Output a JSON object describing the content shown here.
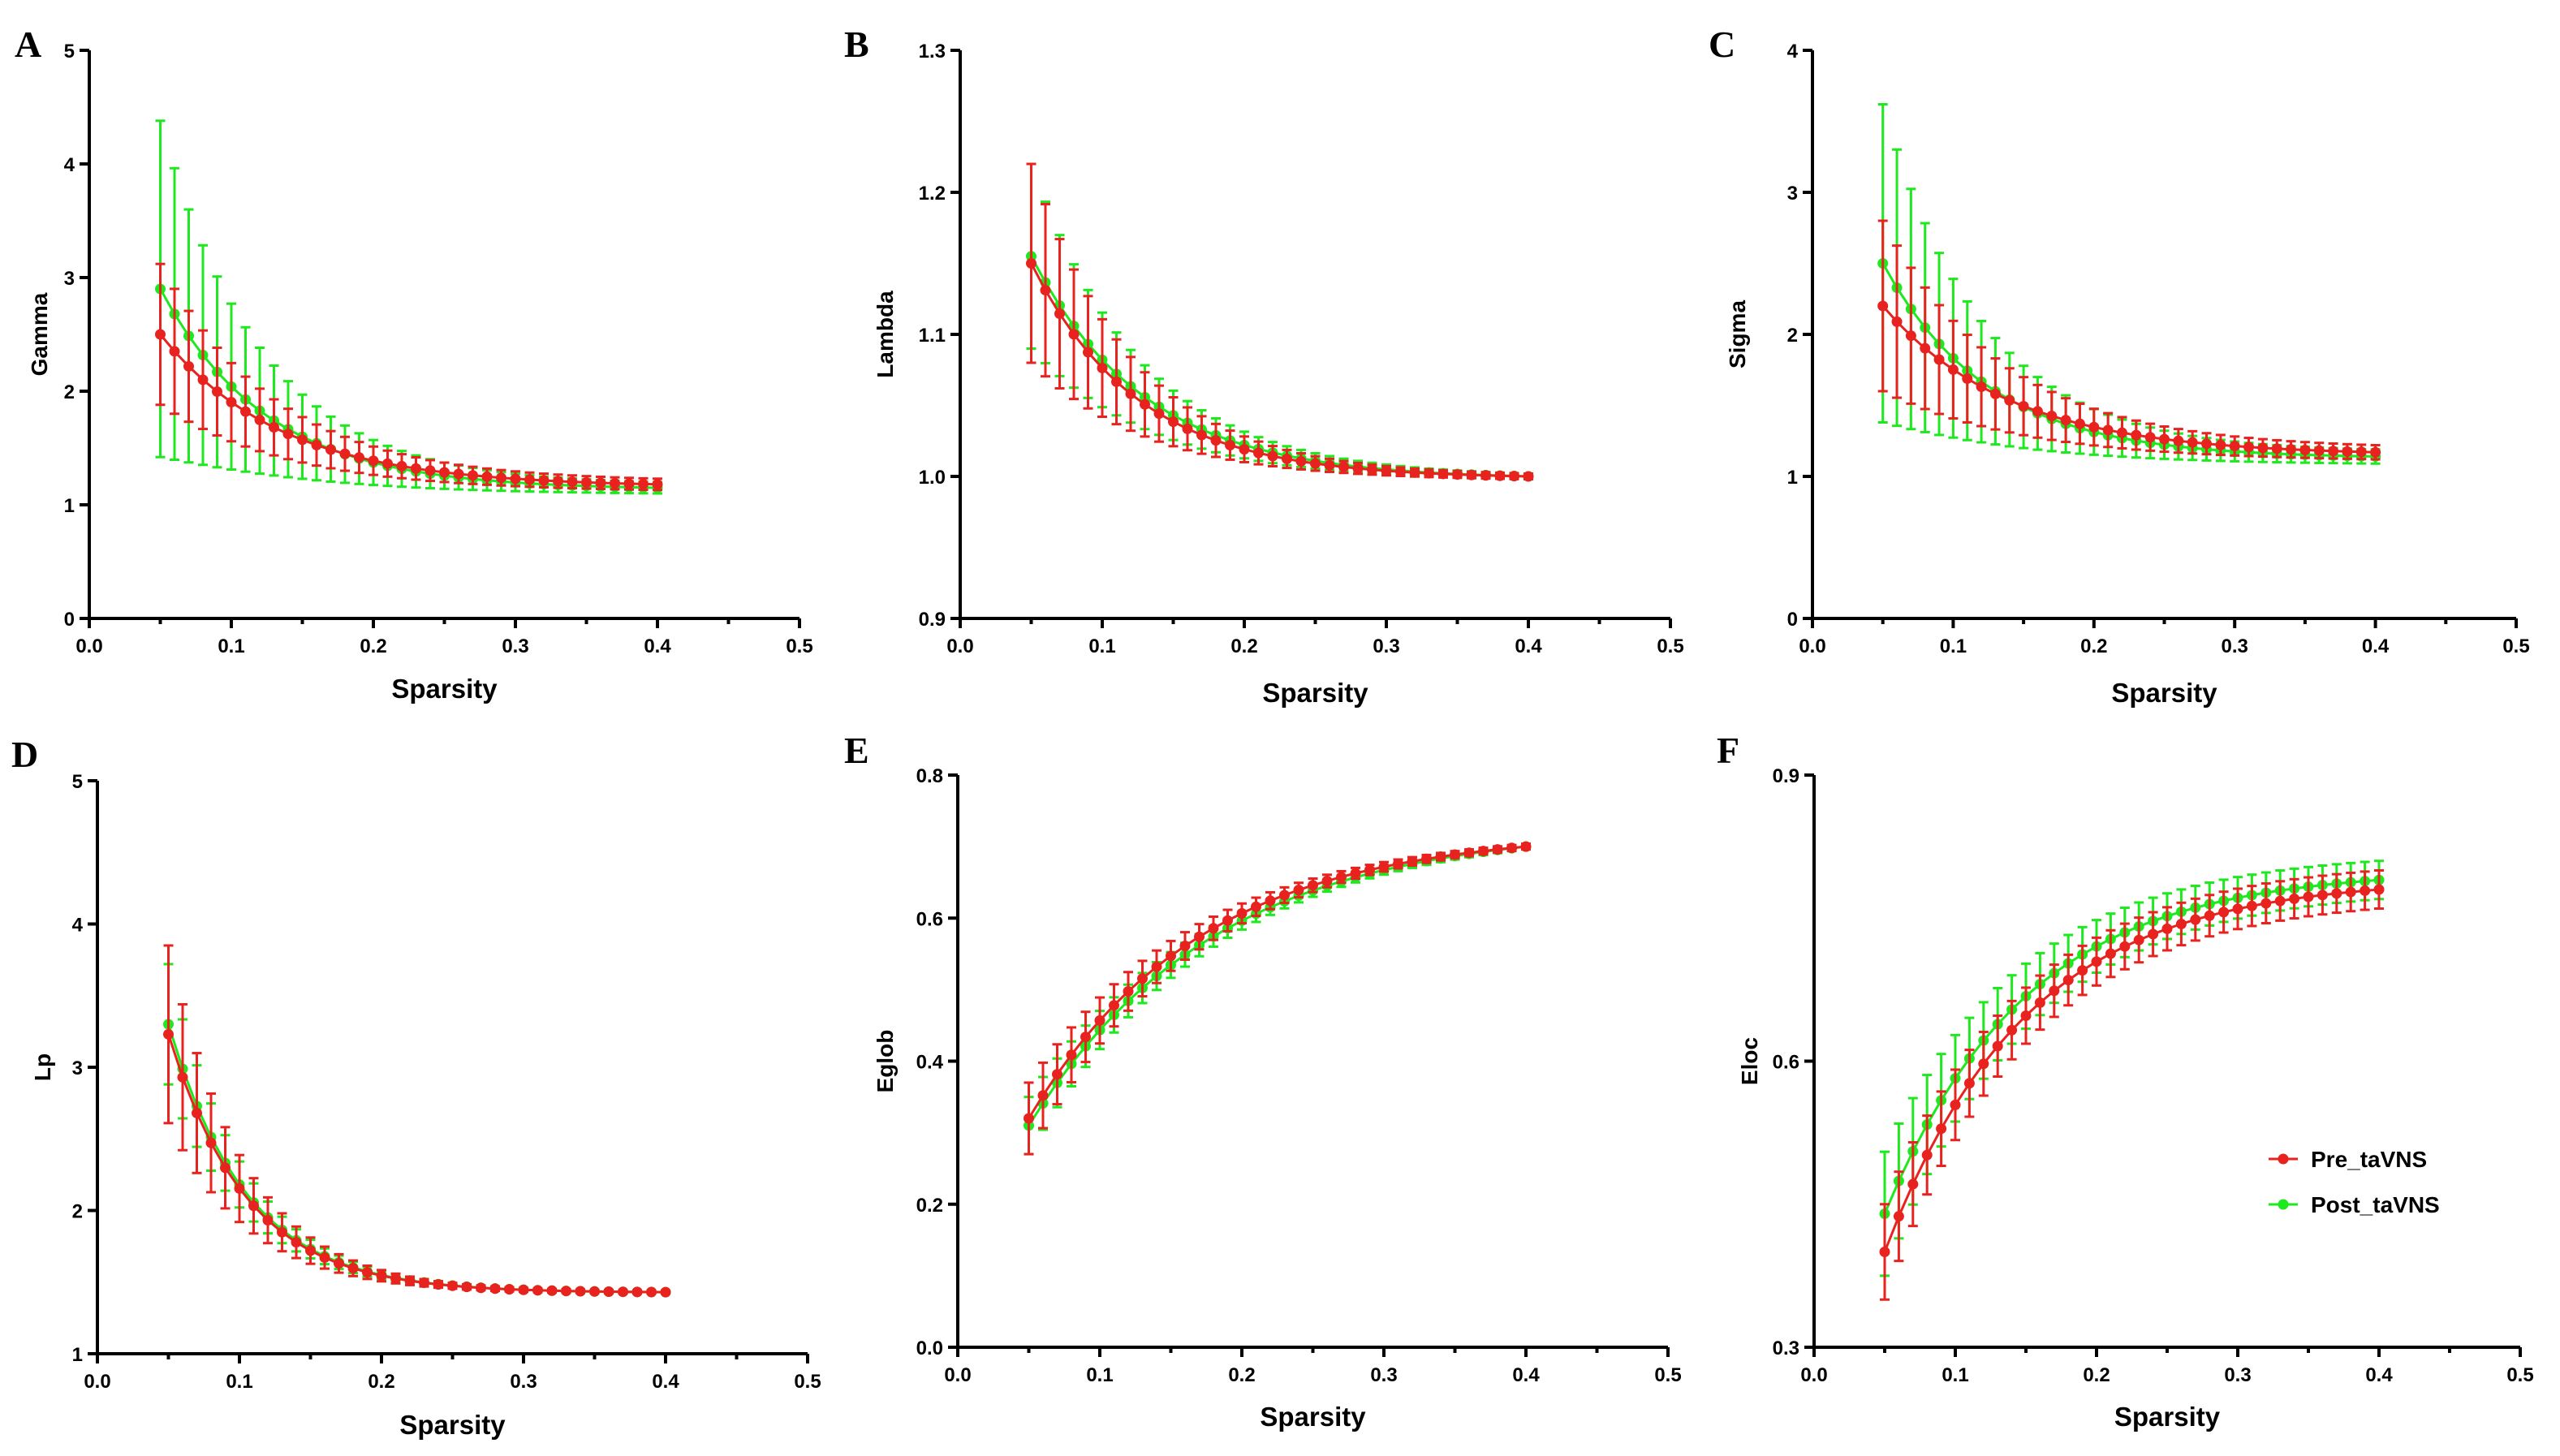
{
  "colors": {
    "pre": "#e8221e",
    "post": "#1ee81e",
    "axis": "#000000"
  },
  "legend": {
    "position": "right",
    "items": [
      "Pre_taVNS",
      "Post_taVNS"
    ]
  },
  "chart_data": [
    {
      "panel": "A",
      "type": "line",
      "xlabel": "Sparsity",
      "ylabel": "Gamma",
      "xlim": [
        0,
        0.5
      ],
      "ylim": [
        0,
        5
      ],
      "xticks": [
        "0.0",
        "0.1",
        "0.2",
        "0.3",
        "0.4",
        "0.5"
      ],
      "yticks": [
        "0",
        "1",
        "2",
        "3",
        "4",
        "5"
      ],
      "x_range": [
        0.05,
        0.4,
        0.01
      ],
      "series": [
        {
          "name": "Pre_taVNS",
          "start": 2.5,
          "end": 1.18,
          "k": 0.085,
          "err_start": 0.62,
          "err_end": 0.05
        },
        {
          "name": "Post_taVNS",
          "start": 2.9,
          "end": 1.15,
          "k": 0.075,
          "err_start": 1.48,
          "err_end": 0.05
        }
      ]
    },
    {
      "panel": "B",
      "type": "line",
      "xlabel": "Sparsity",
      "ylabel": "Lambda",
      "xlim": [
        0,
        0.5
      ],
      "ylim": [
        0.9,
        1.3
      ],
      "xticks": [
        "0.0",
        "0.1",
        "0.2",
        "0.3",
        "0.4",
        "0.5"
      ],
      "yticks": [
        "0.9",
        "1.0",
        "1.1",
        "1.2",
        "1.3"
      ],
      "x_range": [
        0.05,
        0.4,
        0.01
      ],
      "series": [
        {
          "name": "Pre_taVNS",
          "start": 1.15,
          "end": 1.0,
          "k": 0.075,
          "err_start": 0.07,
          "err_end": 0.002
        },
        {
          "name": "Post_taVNS",
          "start": 1.155,
          "end": 1.0,
          "k": 0.08,
          "err_start": 0.065,
          "err_end": 0.002
        }
      ]
    },
    {
      "panel": "C",
      "type": "line",
      "xlabel": "Sparsity",
      "ylabel": "Sigma",
      "xlim": [
        0,
        0.5
      ],
      "ylim": [
        0,
        4
      ],
      "xticks": [
        "0.0",
        "0.1",
        "0.2",
        "0.3",
        "0.4",
        "0.5"
      ],
      "yticks": [
        "0",
        "1",
        "2",
        "3",
        "4"
      ],
      "x_range": [
        0.05,
        0.4,
        0.01
      ],
      "series": [
        {
          "name": "Pre_taVNS",
          "start": 2.2,
          "end": 1.17,
          "k": 0.09,
          "err_start": 0.6,
          "err_end": 0.05
        },
        {
          "name": "Post_taVNS",
          "start": 2.5,
          "end": 1.14,
          "k": 0.075,
          "err_start": 1.12,
          "err_end": 0.05
        }
      ]
    },
    {
      "panel": "D",
      "type": "line",
      "xlabel": "Sparsity",
      "ylabel": "Lp",
      "xlim": [
        0,
        0.5
      ],
      "ylim": [
        1,
        5
      ],
      "xticks": [
        "0.0",
        "0.1",
        "0.2",
        "0.3",
        "0.4",
        "0.5"
      ],
      "yticks": [
        "1",
        "2",
        "3",
        "4",
        "5"
      ],
      "x_range": [
        0.05,
        0.4,
        0.01
      ],
      "series": [
        {
          "name": "Pre_taVNS",
          "start": 3.23,
          "end": 1.43,
          "k": 0.055,
          "err_start": 0.62,
          "err_end": 0.01
        },
        {
          "name": "Post_taVNS",
          "start": 3.3,
          "end": 1.43,
          "k": 0.055,
          "err_start": 0.42,
          "err_end": 0.01
        }
      ]
    },
    {
      "panel": "E",
      "type": "line",
      "xlabel": "Sparsity",
      "ylabel": "Eglob",
      "xlim": [
        0,
        0.5
      ],
      "ylim": [
        0,
        0.8
      ],
      "xticks": [
        "0.0",
        "0.1",
        "0.2",
        "0.3",
        "0.4",
        "0.5"
      ],
      "yticks": [
        "0.0",
        "0.2",
        "0.4",
        "0.6",
        "0.8"
      ],
      "x_range": [
        0.05,
        0.4,
        0.01
      ],
      "series": [
        {
          "name": "Pre_taVNS",
          "start": 0.32,
          "end": 0.7,
          "k": 0.12,
          "err_start": 0.05,
          "err_end": 0.004
        },
        {
          "name": "Post_taVNS",
          "start": 0.31,
          "end": 0.7,
          "k": 0.13,
          "err_start": 0.04,
          "err_end": 0.004
        }
      ]
    },
    {
      "panel": "F",
      "type": "line",
      "xlabel": "Sparsity",
      "ylabel": "Eloc",
      "xlim": [
        0,
        0.5
      ],
      "ylim": [
        0.3,
        0.9
      ],
      "xticks": [
        "0.0",
        "0.1",
        "0.2",
        "0.3",
        "0.4",
        "0.5"
      ],
      "yticks": [
        "0.3",
        "0.6",
        "0.9"
      ],
      "x_range": [
        0.05,
        0.4,
        0.01
      ],
      "series": [
        {
          "name": "Pre_taVNS",
          "start": 0.4,
          "end": 0.78,
          "k": 0.1,
          "err_start": 0.05,
          "err_end": 0.02
        },
        {
          "name": "Post_taVNS",
          "start": 0.44,
          "end": 0.79,
          "k": 0.1,
          "err_start": 0.065,
          "err_end": 0.02
        }
      ]
    }
  ]
}
